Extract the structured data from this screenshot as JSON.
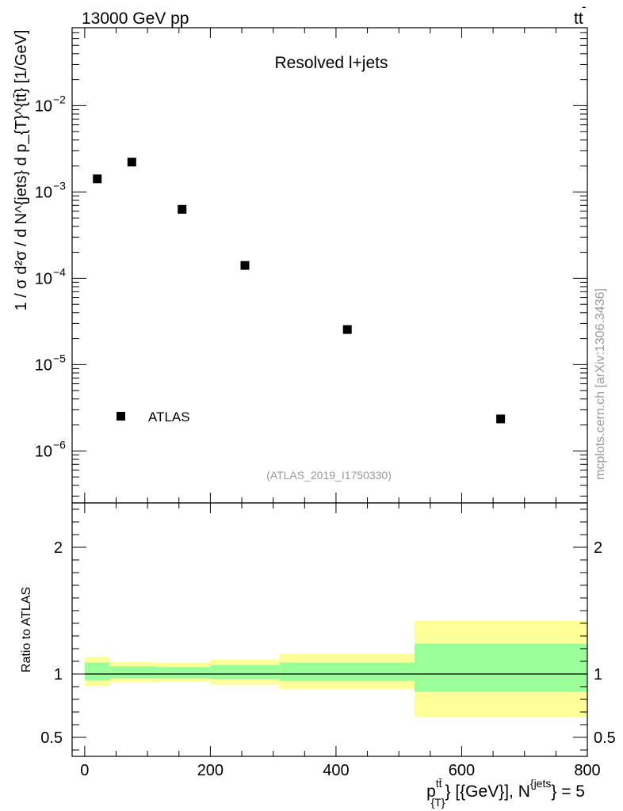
{
  "header": {
    "energy_label": "13000 GeV pp",
    "process_main": "tt",
    "process_bar_mark": "-"
  },
  "watermark": "mcplots.cern.ch [arXiv:1306.3436]",
  "analysis_id": "(ATLAS_2019_I1750330)",
  "chart_data": [
    {
      "type": "scatter",
      "title": "Resolved l+jets",
      "ylabel": "1 / σ d²σ / d N^{jets} d p_{T}^{tt̄} [1/GeV]",
      "yscale": "log",
      "ylim": [
        2.5e-07,
        0.08
      ],
      "xlim": [
        -20,
        800
      ],
      "y_tick_labels": [
        {
          "value": 0.01,
          "base": "10",
          "exp": "−2"
        },
        {
          "value": 0.001,
          "base": "10",
          "exp": "−3"
        },
        {
          "value": 0.0001,
          "base": "10",
          "exp": "−4"
        },
        {
          "value": 1e-05,
          "base": "10",
          "exp": "−5"
        },
        {
          "value": 1e-06,
          "base": "10",
          "exp": "−6"
        }
      ],
      "legend": {
        "position": "bottom-left",
        "entries": [
          "ATLAS"
        ]
      },
      "series": [
        {
          "name": "ATLAS",
          "x": [
            20,
            75,
            155,
            255,
            418,
            662
          ],
          "y": [
            0.00142,
            0.00222,
            0.00063,
            0.000141,
            2.55e-05,
            2.35e-06
          ]
        }
      ]
    },
    {
      "type": "area",
      "ylabel": "Ratio to ATLAS",
      "xlabel": {
        "prefix": "p",
        "sup": "tt̄",
        "sub": "{T}",
        "middle": "} [{GeV}], N",
        "sup2": "{jets",
        "suffix": "} = 5"
      },
      "xlim": [
        -20,
        800
      ],
      "ylim": [
        0.35,
        2.35
      ],
      "x_ticks": [
        0,
        200,
        400,
        600,
        800
      ],
      "x_tick_labels": [
        "0",
        "200",
        "400",
        "600",
        "800"
      ],
      "y_ticks": [
        0.5,
        1,
        2
      ],
      "y_tick_labels": [
        "0.5",
        "1",
        "2"
      ],
      "reference_line": 1,
      "bins": [
        {
          "lo": 0,
          "hi": 40,
          "inner": [
            0.95,
            1.09
          ],
          "outer": [
            0.905,
            1.135
          ]
        },
        {
          "lo": 40,
          "hi": 115,
          "inner": [
            0.965,
            1.06
          ],
          "outer": [
            0.935,
            1.095
          ]
        },
        {
          "lo": 115,
          "hi": 200,
          "inner": [
            0.965,
            1.055
          ],
          "outer": [
            0.94,
            1.09
          ]
        },
        {
          "lo": 200,
          "hi": 310,
          "inner": [
            0.96,
            1.07
          ],
          "outer": [
            0.915,
            1.115
          ]
        },
        {
          "lo": 310,
          "hi": 525,
          "inner": [
            0.945,
            1.09
          ],
          "outer": [
            0.88,
            1.16
          ]
        },
        {
          "lo": 525,
          "hi": 800,
          "inner": [
            0.86,
            1.24
          ],
          "outer": [
            0.66,
            1.42
          ]
        }
      ],
      "colors": {
        "inner": "#99ff99",
        "outer": "#ffff99",
        "line": "#000000"
      }
    }
  ]
}
